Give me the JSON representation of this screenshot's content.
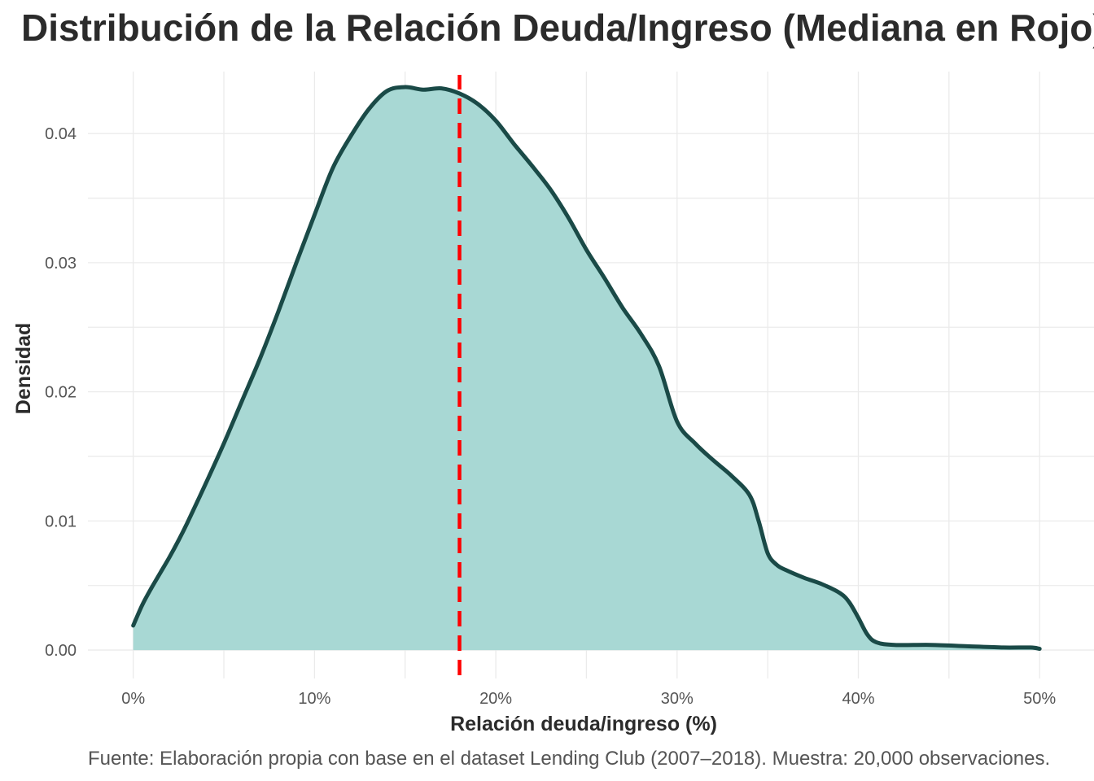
{
  "chart_data": {
    "type": "area",
    "title": "Distribución de la Relación Deuda/Ingreso (Mediana en Rojo)",
    "xlabel": "Relación deuda/ingreso (%)",
    "ylabel": "Densidad",
    "caption": "Fuente: Elaboración propia con base en el dataset Lending Club (2007–2018). Muestra: 20,000 observaciones.",
    "xlim": [
      -2.5,
      53
    ],
    "ylim": [
      -0.0022,
      0.0448
    ],
    "x_ticks": [
      0,
      10,
      20,
      30,
      40,
      50
    ],
    "x_tick_labels": [
      "0%",
      "10%",
      "20%",
      "30%",
      "40%",
      "50%"
    ],
    "y_ticks": [
      0,
      0.01,
      0.02,
      0.03,
      0.04
    ],
    "y_tick_labels": [
      "0.00",
      "0.01",
      "0.02",
      "0.03",
      "0.04"
    ],
    "median": 18.0,
    "fill_color": "#a8d8d4",
    "line_color": "#1a4a47",
    "median_color": "#ff0000",
    "series": [
      {
        "name": "densidad",
        "x": [
          0,
          0.5,
          1,
          1.5,
          2,
          2.5,
          3,
          4,
          5,
          6,
          7,
          8,
          9,
          10,
          11,
          12,
          13,
          14,
          15,
          16,
          17,
          18,
          19,
          20,
          21,
          22,
          23,
          24,
          25,
          26,
          27,
          28,
          29,
          30,
          31,
          32,
          33,
          34,
          34.5,
          35,
          35.5,
          36,
          37,
          38,
          39,
          39.5,
          40,
          40.5,
          41,
          42,
          44,
          46,
          48,
          49.5,
          50
        ],
        "y": [
          0.0019,
          0.0035,
          0.0048,
          0.006,
          0.0072,
          0.0085,
          0.0099,
          0.0129,
          0.016,
          0.0193,
          0.0226,
          0.0262,
          0.03,
          0.0337,
          0.0373,
          0.0398,
          0.0419,
          0.0433,
          0.0436,
          0.0434,
          0.0435,
          0.0431,
          0.0423,
          0.041,
          0.0392,
          0.0375,
          0.0357,
          0.0335,
          0.031,
          0.0288,
          0.0265,
          0.0245,
          0.022,
          0.0177,
          0.016,
          0.0147,
          0.0135,
          0.012,
          0.01,
          0.0075,
          0.0066,
          0.0062,
          0.0056,
          0.0051,
          0.0044,
          0.0037,
          0.0025,
          0.0012,
          0.0006,
          0.0004,
          0.0004,
          0.0003,
          0.0002,
          0.0002,
          0.0001
        ]
      }
    ]
  }
}
